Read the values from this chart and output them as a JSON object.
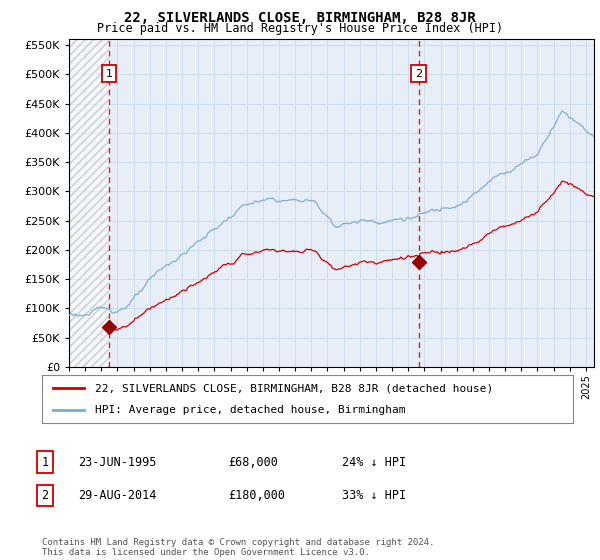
{
  "title": "22, SILVERLANDS CLOSE, BIRMINGHAM, B28 8JR",
  "subtitle": "Price paid vs. HM Land Registry's House Price Index (HPI)",
  "ytick_values": [
    0,
    50000,
    100000,
    150000,
    200000,
    250000,
    300000,
    350000,
    400000,
    450000,
    500000,
    550000
  ],
  "xlim_start": 1993.0,
  "xlim_end": 2025.5,
  "ylim_min": 0,
  "ylim_max": 560000,
  "transaction1": {
    "year": 1995.47,
    "price": 68000,
    "label": "1",
    "date": "23-JUN-1995",
    "hpi_pct": "24% ↓ HPI"
  },
  "transaction2": {
    "year": 2014.66,
    "price": 180000,
    "label": "2",
    "date": "29-AUG-2014",
    "hpi_pct": "33% ↓ HPI"
  },
  "legend_property": "22, SILVERLANDS CLOSE, BIRMINGHAM, B28 8JR (detached house)",
  "legend_hpi": "HPI: Average price, detached house, Birmingham",
  "footnote": "Contains HM Land Registry data © Crown copyright and database right 2024.\nThis data is licensed under the Open Government Licence v3.0.",
  "grid_color": "#ccddee",
  "property_line_color": "#cc0000",
  "hpi_line_color": "#7aadcc",
  "dashed_line_color": "#cc0000",
  "marker_color": "#990000",
  "background_plot": "#e8eef8",
  "hatch_region_end": 1995.47
}
